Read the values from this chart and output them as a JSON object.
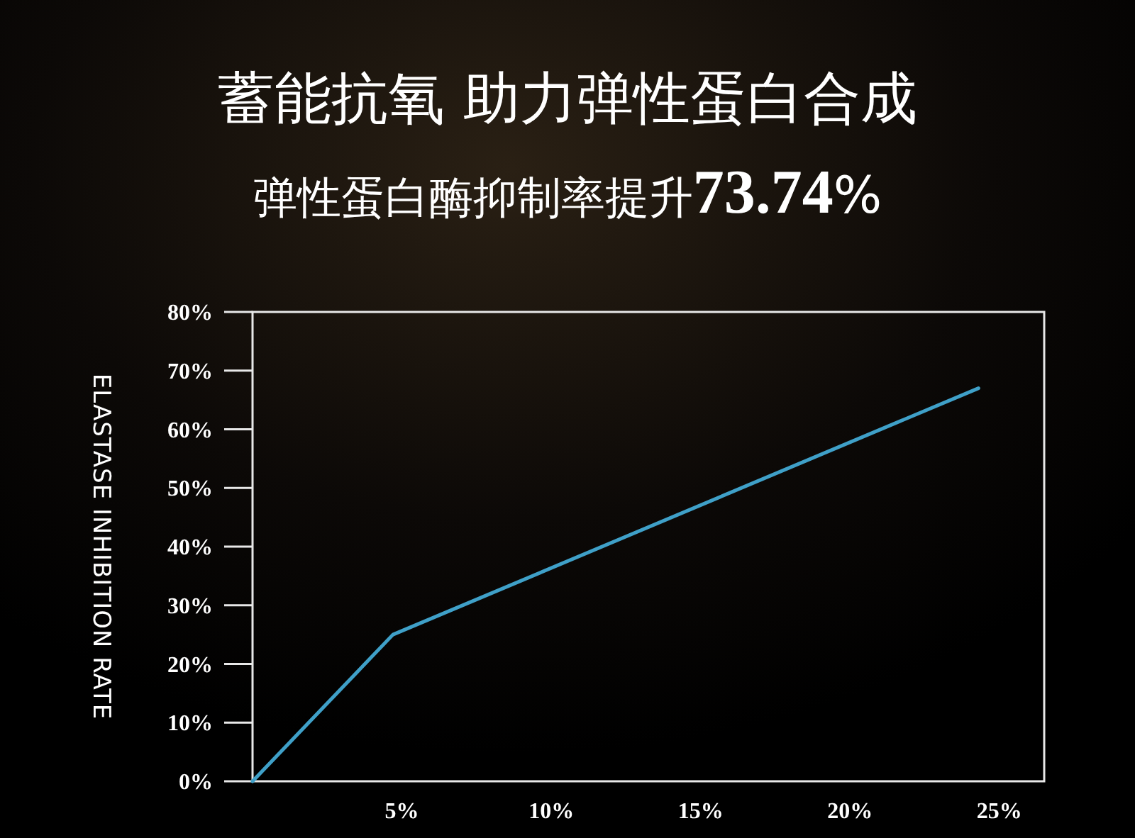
{
  "chart_data": {
    "type": "line",
    "title": "蓄能抗氧 助力弹性蛋白合成",
    "subtitle": "弹性蛋白酶抑制率提升73.74%",
    "ylabel": "ELASTASE INHIBITION RATE",
    "x": [
      0,
      4.7,
      24.3
    ],
    "series": [
      {
        "color": "#3fa0c8",
        "values": [
          0,
          25,
          67
        ]
      }
    ],
    "xlim": [
      0,
      26.5
    ],
    "xticks": [
      {
        "value": 5,
        "label": "5%"
      },
      {
        "value": 10,
        "label": "10%"
      },
      {
        "value": 15,
        "label": "15%"
      },
      {
        "value": 20,
        "label": "20%"
      },
      {
        "value": 25,
        "label": "25%"
      }
    ],
    "ylim": [
      0,
      80
    ],
    "yticks": [
      {
        "value": 0,
        "label": "0%"
      },
      {
        "value": 10,
        "label": "10%"
      },
      {
        "value": 20,
        "label": "20%"
      },
      {
        "value": 30,
        "label": "30%"
      },
      {
        "value": 40,
        "label": "40%"
      },
      {
        "value": 50,
        "label": "50%"
      },
      {
        "value": 60,
        "label": "60%"
      },
      {
        "value": 70,
        "label": "70%"
      },
      {
        "value": 80,
        "label": "80%"
      }
    ],
    "grid": false,
    "marker": "none",
    "line_style": "solid"
  }
}
